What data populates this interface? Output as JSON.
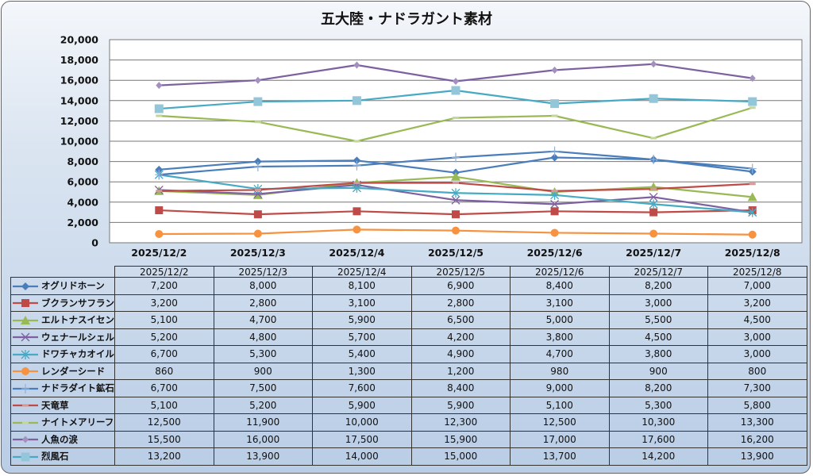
{
  "chart_data": {
    "type": "line",
    "title": "五大陸・ナドラガント素材",
    "xlabel": "",
    "ylabel": "",
    "ylim": [
      0,
      20000
    ],
    "yticks": [
      "0",
      "2,000",
      "4,000",
      "6,000",
      "8,000",
      "10,000",
      "12,000",
      "14,000",
      "16,000",
      "18,000",
      "20,000"
    ],
    "ytick_values": [
      0,
      2000,
      4000,
      6000,
      8000,
      10000,
      12000,
      14000,
      16000,
      18000,
      20000
    ],
    "grid": true,
    "legend": "data-table-below",
    "categories": [
      "2025/12/2",
      "2025/12/3",
      "2025/12/4",
      "2025/12/5",
      "2025/12/6",
      "2025/12/7",
      "2025/12/8"
    ],
    "series": [
      {
        "name": "オグリドホーン",
        "color": "#4a7ebb",
        "marker": "diamond",
        "values": [
          7200,
          8000,
          8100,
          6900,
          8400,
          8200,
          7000
        ],
        "labels": [
          "7,200",
          "8,000",
          "8,100",
          "6,900",
          "8,400",
          "8,200",
          "7,000"
        ]
      },
      {
        "name": "ブクランサフラン",
        "color": "#be4b48",
        "marker": "square",
        "values": [
          3200,
          2800,
          3100,
          2800,
          3100,
          3000,
          3200
        ],
        "labels": [
          "3,200",
          "2,800",
          "3,100",
          "2,800",
          "3,100",
          "3,000",
          "3,200"
        ]
      },
      {
        "name": "エルトナスイセン",
        "color": "#98b954",
        "marker": "triangle",
        "values": [
          5100,
          4700,
          5900,
          6500,
          5000,
          5500,
          4500
        ],
        "labels": [
          "5,100",
          "4,700",
          "5,900",
          "6,500",
          "5,000",
          "5,500",
          "4,500"
        ]
      },
      {
        "name": "ウェナールシェル",
        "color": "#7d60a0",
        "marker": "x",
        "values": [
          5200,
          4800,
          5700,
          4200,
          3800,
          4500,
          3000
        ],
        "labels": [
          "5,200",
          "4,800",
          "5,700",
          "4,200",
          "3,800",
          "4,500",
          "3,000"
        ]
      },
      {
        "name": "ドワチャカオイル",
        "color": "#46aac5",
        "marker": "star",
        "values": [
          6700,
          5300,
          5400,
          4900,
          4700,
          3800,
          3000
        ],
        "labels": [
          "6,700",
          "5,300",
          "5,400",
          "4,900",
          "4,700",
          "3,800",
          "3,000"
        ]
      },
      {
        "name": "レンダーシード",
        "color": "#f69240",
        "marker": "circle",
        "values": [
          860,
          900,
          1300,
          1200,
          980,
          900,
          800
        ],
        "labels": [
          "860",
          "900",
          "1,300",
          "1,200",
          "980",
          "900",
          "800"
        ]
      },
      {
        "name": "ナドラダイト鉱石",
        "color": "#4a7ebb",
        "marker": "plus",
        "values": [
          6700,
          7500,
          7600,
          8400,
          9000,
          8200,
          7300
        ],
        "labels": [
          "6,700",
          "7,500",
          "7,600",
          "8,400",
          "9,000",
          "8,200",
          "7,300"
        ]
      },
      {
        "name": "天竜草",
        "color": "#be4b48",
        "marker": "dash",
        "values": [
          5100,
          5200,
          5900,
          5900,
          5100,
          5300,
          5800
        ],
        "labels": [
          "5,100",
          "5,200",
          "5,900",
          "5,900",
          "5,100",
          "5,300",
          "5,800"
        ]
      },
      {
        "name": "ナイトメアリーフ",
        "color": "#98b954",
        "marker": "dash",
        "values": [
          12500,
          11900,
          10000,
          12300,
          12500,
          10300,
          13300
        ],
        "labels": [
          "12,500",
          "11,900",
          "10,000",
          "12,300",
          "12,500",
          "10,300",
          "13,300"
        ]
      },
      {
        "name": "人魚の涙",
        "color": "#7d60a0",
        "marker": "diamond-small",
        "values": [
          15500,
          16000,
          17500,
          15900,
          17000,
          17600,
          16200
        ],
        "labels": [
          "15,500",
          "16,000",
          "17,500",
          "15,900",
          "17,000",
          "17,600",
          "16,200"
        ]
      },
      {
        "name": "烈風石",
        "color": "#46aac5",
        "marker": "square-light",
        "values": [
          13200,
          13900,
          14000,
          15000,
          13700,
          14200,
          13900
        ],
        "labels": [
          "13,200",
          "13,900",
          "14,000",
          "15,000",
          "13,700",
          "14,200",
          "13,900"
        ]
      }
    ]
  }
}
